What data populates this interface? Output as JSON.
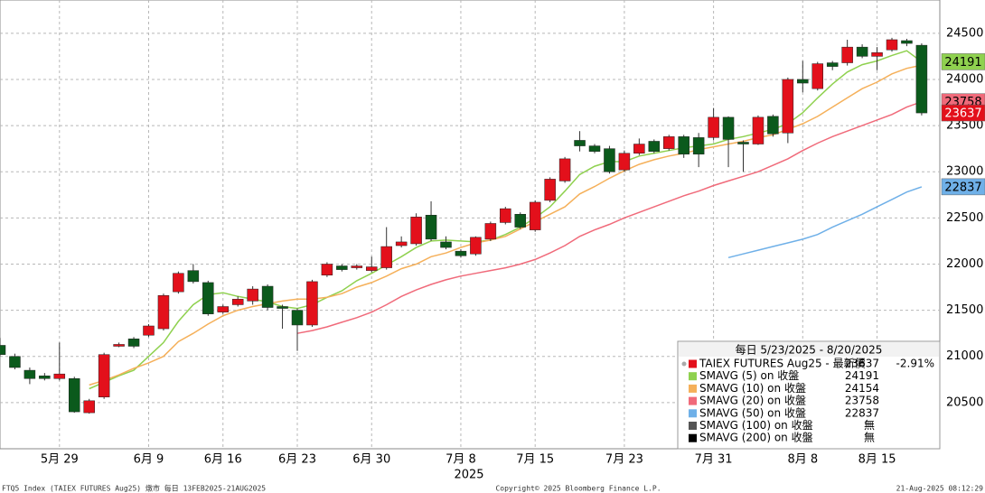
{
  "chart_data": {
    "type": "candlestick",
    "categories": [
      null,
      null,
      null,
      null,
      "5月 29",
      null,
      null,
      null,
      null,
      null,
      "6月 9",
      null,
      null,
      null,
      null,
      "6月 16",
      null,
      null,
      null,
      null,
      "6月 23",
      null,
      null,
      null,
      null,
      "6月 30",
      null,
      null,
      null,
      null,
      null,
      "7月 8",
      null,
      null,
      null,
      null,
      "7月 15",
      null,
      null,
      null,
      null,
      null,
      "7月 23",
      null,
      null,
      null,
      null,
      null,
      "7月 31",
      null,
      null,
      null,
      null,
      null,
      "8月 8",
      null,
      null,
      null,
      null,
      "8月 15",
      null,
      null,
      null
    ],
    "x_year_label": "2025",
    "ylim": [
      20000,
      24860
    ],
    "yticks": [
      20500,
      21000,
      21500,
      22000,
      22500,
      23000,
      23500,
      24000,
      24500
    ],
    "grid": true,
    "legend_title": "每日 5/23/2025 - 8/20/2025",
    "candles": {
      "name": "TAIEX FUTURES Aug25 - 最新價",
      "change_label": "-2.91%",
      "up_color": "#e3101b",
      "down_color": "#0b5a1c",
      "open": [
        21120,
        21000,
        20850,
        20790,
        20760,
        20760,
        20390,
        20560,
        21110,
        21190,
        21230,
        21300,
        21700,
        21930,
        21800,
        21480,
        21560,
        21600,
        21760,
        21540,
        21500,
        21340,
        21880,
        21980,
        21960,
        21930,
        21960,
        22200,
        22220,
        22530,
        22240,
        22140,
        22110,
        22270,
        22450,
        22540,
        22370,
        22690,
        22900,
        23340,
        23280,
        23250,
        23020,
        23200,
        23330,
        23250,
        23380,
        23370,
        23370,
        23590,
        23320,
        23300,
        23600,
        23420,
        24000,
        23900,
        24180,
        24180,
        24350,
        24250,
        24320,
        24420,
        24370
      ],
      "high": [
        21200,
        21030,
        20880,
        20820,
        21150,
        20780,
        20540,
        21040,
        21150,
        21210,
        21350,
        21680,
        21920,
        22000,
        21820,
        21560,
        21650,
        21760,
        21780,
        21560,
        21520,
        21830,
        22020,
        22000,
        22000,
        22080,
        22400,
        22300,
        22550,
        22680,
        22300,
        22160,
        22300,
        22460,
        22620,
        22560,
        22690,
        22940,
        23160,
        23440,
        23300,
        23280,
        23230,
        23360,
        23350,
        23400,
        23400,
        23420,
        23690,
        23600,
        23340,
        23610,
        23620,
        24020,
        24200,
        24190,
        24200,
        24430,
        24380,
        24350,
        24450,
        24440,
        24390
      ],
      "low": [
        21000,
        20860,
        20700,
        20740,
        20740,
        20390,
        20380,
        20540,
        21100,
        21090,
        21210,
        21280,
        21680,
        21790,
        21440,
        21460,
        21540,
        21560,
        21500,
        21300,
        21060,
        21320,
        21860,
        21920,
        21940,
        21910,
        21940,
        22180,
        22200,
        22250,
        22160,
        22070,
        22090,
        22250,
        22430,
        22380,
        22350,
        22670,
        22880,
        23220,
        23200,
        22980,
        23000,
        23180,
        23200,
        23230,
        23150,
        23050,
        23340,
        23050,
        23000,
        23290,
        23380,
        23310,
        23860,
        23880,
        24100,
        24150,
        24230,
        24100,
        24300,
        24360,
        23610
      ],
      "close": [
        21020,
        20880,
        20760,
        20760,
        20810,
        20400,
        20520,
        21020,
        21130,
        21110,
        21330,
        21660,
        21900,
        21810,
        21460,
        21540,
        21620,
        21730,
        21530,
        21520,
        21340,
        21810,
        22000,
        21940,
        21980,
        21970,
        22190,
        22240,
        22510,
        22270,
        22180,
        22090,
        22290,
        22440,
        22600,
        22400,
        22670,
        22920,
        23140,
        23280,
        23220,
        23000,
        23200,
        23300,
        23220,
        23380,
        23190,
        23190,
        23590,
        23350,
        23300,
        23590,
        23410,
        24000,
        23960,
        24170,
        24140,
        24350,
        24250,
        24290,
        24430,
        24390,
        23637
      ]
    },
    "series": [
      {
        "name": "SMAVG (5)  on 收盤",
        "color": "#8fd14f",
        "values": [
          null,
          null,
          null,
          null,
          null,
          null,
          20650,
          20720,
          20790,
          20850,
          21000,
          21150,
          21380,
          21560,
          21670,
          21690,
          21650,
          21620,
          21590,
          21540,
          21520,
          21560,
          21640,
          21710,
          21820,
          21900,
          21990,
          22080,
          22180,
          22250,
          22260,
          22250,
          22240,
          22260,
          22320,
          22400,
          22500,
          22620,
          22790,
          22970,
          23060,
          23110,
          23110,
          23170,
          23200,
          23230,
          23260,
          23280,
          23300,
          23350,
          23380,
          23420,
          23460,
          23520,
          23640,
          23800,
          23950,
          24080,
          24160,
          24200,
          24260,
          24310,
          24191
        ]
      },
      {
        "name": "SMAVG (10)  on 收盤",
        "color": "#f5b05a",
        "values": [
          null,
          null,
          null,
          null,
          null,
          null,
          20690,
          20740,
          20800,
          20870,
          20930,
          21000,
          21160,
          21250,
          21350,
          21440,
          21500,
          21540,
          21570,
          21600,
          21620,
          21620,
          21640,
          21680,
          21750,
          21800,
          21870,
          21950,
          22000,
          22080,
          22120,
          22180,
          22230,
          22260,
          22300,
          22380,
          22460,
          22540,
          22620,
          22760,
          22840,
          22930,
          23010,
          23080,
          23130,
          23170,
          23200,
          23240,
          23270,
          23300,
          23330,
          23370,
          23400,
          23460,
          23520,
          23600,
          23700,
          23800,
          23900,
          23970,
          24060,
          24120,
          24154
        ]
      },
      {
        "name": "SMAVG (20)  on 收盤",
        "color": "#f06a7a",
        "values": [
          null,
          null,
          null,
          null,
          null,
          null,
          null,
          null,
          null,
          null,
          null,
          null,
          null,
          null,
          null,
          null,
          null,
          null,
          null,
          null,
          21250,
          21280,
          21320,
          21370,
          21420,
          21480,
          21560,
          21650,
          21720,
          21780,
          21830,
          21870,
          21900,
          21930,
          21960,
          22000,
          22050,
          22120,
          22200,
          22300,
          22370,
          22430,
          22500,
          22560,
          22620,
          22680,
          22740,
          22790,
          22850,
          22900,
          22950,
          23000,
          23070,
          23140,
          23230,
          23310,
          23380,
          23440,
          23500,
          23560,
          23620,
          23700,
          23758
        ]
      },
      {
        "name": "SMAVG (50)  on 收盤",
        "color": "#6fb0e8",
        "values": [
          null,
          null,
          null,
          null,
          null,
          null,
          null,
          null,
          null,
          null,
          null,
          null,
          null,
          null,
          null,
          null,
          null,
          null,
          null,
          null,
          null,
          null,
          null,
          null,
          null,
          null,
          null,
          null,
          null,
          null,
          null,
          null,
          null,
          null,
          null,
          null,
          null,
          null,
          null,
          null,
          null,
          null,
          null,
          null,
          null,
          null,
          null,
          null,
          null,
          22070,
          22110,
          22150,
          22190,
          22230,
          22270,
          22320,
          22400,
          22470,
          22540,
          22620,
          22700,
          22780,
          22837
        ]
      }
    ],
    "legend_na": [
      {
        "name": "SMAVG (100)  on 收盤",
        "color": "#555555",
        "label": "無"
      },
      {
        "name": "SMAVG (200)  on 收盤",
        "color": "#000000",
        "label": "無"
      }
    ],
    "footer": {
      "left": "FTQ5 Index (TAIEX FUTURES    Aug25) 燉市   每日 13FEB2025-21AUG2025",
      "center": "Copyright© 2025 Bloomberg Finance L.P.",
      "right": "21-Aug-2025 08:12:29"
    }
  }
}
